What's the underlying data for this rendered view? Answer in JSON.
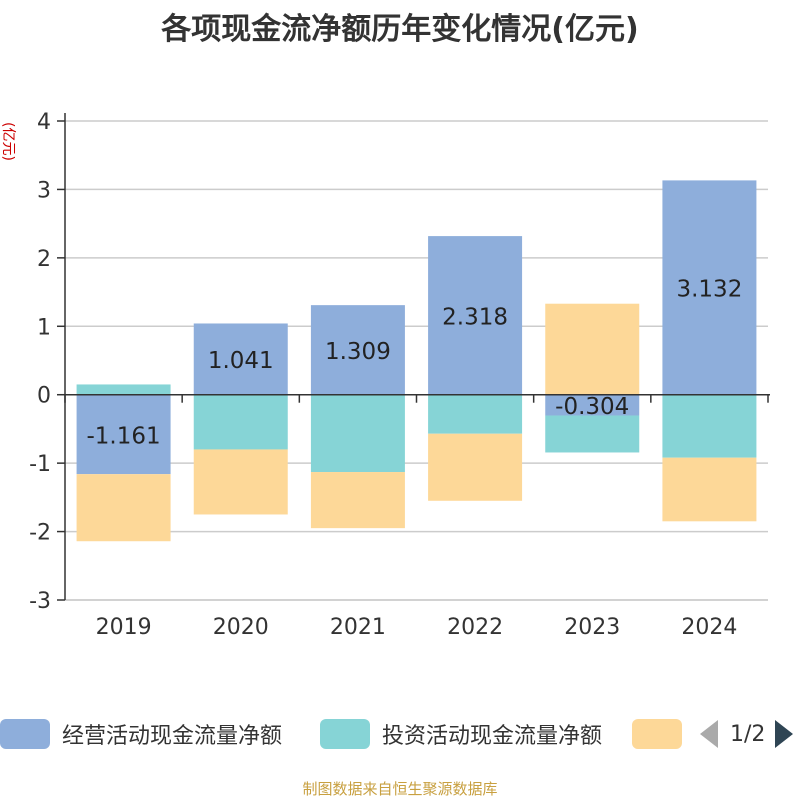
{
  "title": "各项现金流净额历年变化情况(亿元)",
  "footer": "制图数据来自恒生聚源数据库",
  "chart_data": {
    "type": "bar",
    "stacked": true,
    "ylabel": "(亿元)",
    "ylim": [
      -3,
      4
    ],
    "yticks": [
      -3,
      -2,
      -1,
      0,
      1,
      2,
      3,
      4
    ],
    "grid": true,
    "legend_position": "bottom",
    "categories": [
      "2019",
      "2020",
      "2021",
      "2022",
      "2023",
      "2024"
    ],
    "series": [
      {
        "name": "经营活动现金流量净额",
        "color": "#8eaedb",
        "values": [
          -1.161,
          1.041,
          1.309,
          2.318,
          -0.304,
          3.132
        ],
        "show_labels": true
      },
      {
        "name": "投资活动现金流量净额",
        "color": "#86d4d6",
        "values": [
          0.15,
          -0.8,
          -1.13,
          -0.57,
          -0.54,
          -0.92
        ],
        "show_labels": false
      },
      {
        "name": "",
        "color": "#fdd898",
        "values": [
          -0.98,
          -0.95,
          -0.82,
          -0.98,
          1.33,
          -0.93
        ],
        "show_labels": false
      }
    ]
  },
  "legend": {
    "items": [
      {
        "label": "经营活动现金流量净额",
        "color": "#8eaedb"
      },
      {
        "label": "投资活动现金流量净额",
        "color": "#86d4d6"
      },
      {
        "label": "",
        "color": "#fdd898"
      }
    ],
    "page_text": "1/2"
  }
}
